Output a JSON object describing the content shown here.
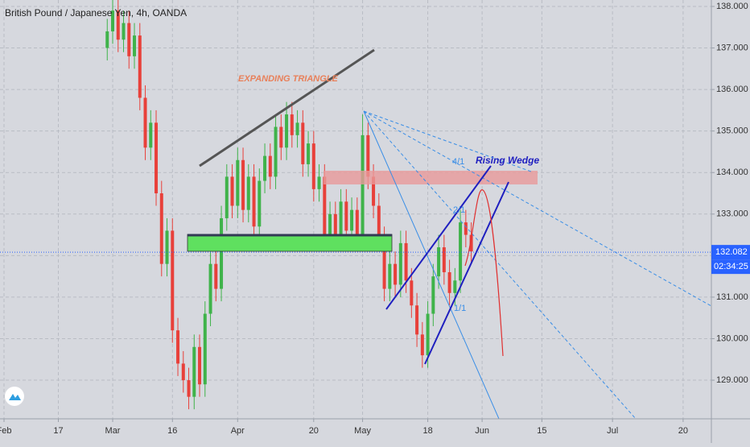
{
  "chart_data": {
    "type": "candlestick",
    "title": "British Pound / Japanese Yen, 4h, OANDA",
    "annotations": [
      "EXPANDING TRIANGLE",
      "Rising Wedge",
      "4/1",
      "2/1",
      "1/1"
    ],
    "current_price": 132.082,
    "countdown": "02:34:25",
    "up_color": "#3fb34a",
    "down_color": "#e8403a",
    "price_line_color": "#2962ff",
    "grid": true,
    "ylim": [
      128.07,
      138.155
    ],
    "yticks": [
      {
        "value": 129,
        "label": "129.000"
      },
      {
        "value": 130,
        "label": "130.000"
      },
      {
        "value": 131,
        "label": "131.000"
      },
      {
        "value": 132,
        "label": "132.000"
      },
      {
        "value": 133,
        "label": "133.000"
      },
      {
        "value": 134,
        "label": "134.000"
      },
      {
        "value": 135,
        "label": "135.000"
      },
      {
        "value": 136,
        "label": "136.000"
      },
      {
        "value": 137,
        "label": "137.000"
      },
      {
        "value": 138,
        "label": "138.000"
      }
    ],
    "xlim": [
      -0.74,
      130.2
    ],
    "xticks": [
      {
        "value": 0,
        "label": "Feb"
      },
      {
        "value": 10,
        "label": "17"
      },
      {
        "value": 20,
        "label": "Mar"
      },
      {
        "value": 31,
        "label": "16"
      },
      {
        "value": 43,
        "label": "Apr"
      },
      {
        "value": 57,
        "label": "20"
      },
      {
        "value": 66,
        "label": "May"
      },
      {
        "value": 78,
        "label": "18"
      },
      {
        "value": 88,
        "label": "Jun"
      },
      {
        "value": 99,
        "label": "15"
      },
      {
        "value": 112,
        "label": "Jul"
      },
      {
        "value": 125,
        "label": "20"
      }
    ],
    "series": [
      {
        "x": [
          19,
          20,
          21,
          22,
          23,
          24,
          25,
          26,
          27,
          28,
          29,
          30,
          31,
          32,
          33,
          34,
          35,
          36,
          37,
          38,
          39,
          40,
          41,
          42,
          43,
          44,
          45,
          46,
          47,
          48,
          49,
          50,
          51,
          52,
          53,
          54,
          55,
          56,
          57,
          58,
          59,
          60,
          61,
          62,
          63,
          64,
          65,
          66,
          67,
          68,
          69,
          70,
          71,
          72,
          73,
          74,
          75,
          76,
          77,
          78,
          79,
          80,
          81,
          82,
          83,
          84,
          85,
          86
        ],
        "open": [
          137.0,
          137.4,
          137.9,
          137.2,
          137.6,
          136.8,
          137.3,
          135.8,
          134.6,
          135.2,
          133.5,
          131.8,
          132.6,
          130.2,
          129.4,
          129.0,
          128.6,
          129.8,
          128.9,
          130.6,
          131.8,
          131.2,
          132.9,
          133.9,
          133.2,
          134.3,
          133.1,
          133.9,
          132.7,
          133.8,
          134.4,
          133.9,
          135.1,
          134.6,
          135.4,
          134.9,
          135.2,
          134.2,
          134.7,
          133.6,
          133.9,
          132.4,
          133.0,
          132.5,
          133.3,
          132.6,
          133.1,
          132.4,
          134.9,
          133.9,
          133.2,
          132.4,
          131.2,
          131.8,
          131.3,
          132.3,
          131.4,
          130.8,
          130.1,
          129.6,
          130.6,
          131.5,
          132.2,
          131.6,
          131.1,
          131.4,
          132.8,
          132.5
        ],
        "high": [
          137.7,
          138.2,
          138.2,
          137.9,
          137.9,
          137.6,
          137.6,
          136.1,
          135.5,
          135.5,
          133.8,
          132.9,
          132.9,
          130.5,
          129.7,
          129.3,
          130.1,
          130.1,
          130.9,
          132.1,
          132.1,
          133.2,
          134.2,
          134.2,
          134.6,
          134.6,
          134.2,
          134.2,
          134.1,
          134.7,
          134.7,
          135.4,
          135.4,
          135.7,
          135.7,
          135.5,
          135.5,
          135.0,
          135.0,
          134.2,
          134.2,
          133.3,
          133.3,
          133.6,
          133.6,
          133.4,
          133.4,
          135.4,
          135.2,
          134.2,
          133.5,
          132.7,
          132.1,
          132.1,
          132.6,
          132.6,
          131.7,
          131.1,
          130.4,
          130.9,
          131.8,
          132.5,
          132.5,
          131.9,
          131.7,
          133.1,
          133.1,
          132.8
        ],
        "low": [
          136.7,
          137.1,
          136.9,
          136.9,
          136.5,
          136.5,
          135.5,
          134.3,
          134.3,
          133.2,
          131.5,
          131.5,
          129.9,
          129.1,
          128.7,
          128.3,
          128.3,
          128.6,
          128.6,
          130.3,
          130.9,
          130.9,
          132.6,
          132.9,
          132.9,
          132.8,
          132.8,
          132.4,
          132.4,
          133.5,
          133.6,
          133.6,
          134.3,
          134.3,
          134.6,
          134.6,
          133.9,
          133.9,
          133.3,
          133.3,
          132.1,
          132.1,
          132.2,
          132.2,
          132.3,
          132.3,
          132.1,
          132.1,
          133.6,
          132.9,
          132.1,
          130.9,
          130.9,
          131.0,
          131.0,
          131.1,
          130.5,
          129.8,
          129.3,
          129.3,
          130.3,
          131.2,
          131.3,
          130.8,
          130.8,
          131.1,
          132.2,
          131.8
        ],
        "close": [
          137.4,
          137.9,
          137.2,
          137.6,
          136.8,
          137.3,
          135.8,
          134.6,
          135.2,
          133.5,
          131.8,
          132.6,
          130.2,
          129.4,
          129.0,
          128.6,
          129.8,
          128.9,
          130.6,
          131.8,
          131.2,
          132.9,
          133.9,
          133.2,
          134.3,
          133.1,
          133.9,
          132.7,
          133.8,
          134.4,
          133.9,
          135.1,
          134.6,
          135.4,
          134.9,
          135.2,
          134.2,
          134.7,
          133.6,
          133.9,
          132.4,
          133.0,
          132.5,
          133.3,
          132.6,
          133.1,
          132.4,
          134.9,
          133.9,
          133.2,
          132.4,
          131.2,
          131.8,
          131.3,
          132.3,
          131.4,
          130.8,
          130.1,
          129.6,
          130.6,
          131.5,
          132.2,
          131.6,
          131.1,
          131.4,
          132.8,
          132.5,
          132.1
        ]
      }
    ]
  }
}
